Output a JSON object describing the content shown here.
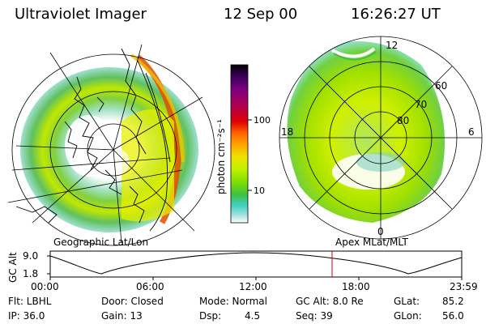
{
  "header": {
    "title": "Ultraviolet Imager",
    "date": "12 Sep 00",
    "time": "16:26:27 UT"
  },
  "left_map": {
    "label": "Geographic Lat/Lon"
  },
  "right_map": {
    "label": "Apex  MLat/MLT",
    "mlt_labels": {
      "top": "12",
      "left": "18",
      "right": "6",
      "bottom": "0"
    },
    "lat_labels": [
      "60",
      "70",
      "80"
    ]
  },
  "colorbar": {
    "unit": "photon cm⁻²s⁻¹",
    "ticks": [
      "100",
      "10"
    ],
    "colors": [
      "#000000",
      "#400060",
      "#800080",
      "#b00050",
      "#e00000",
      "#ff6000",
      "#ffa000",
      "#f0e000",
      "#c0f000",
      "#80e000",
      "#40c040",
      "#40d0c0",
      "#a0e0e0",
      "#ffffff"
    ]
  },
  "timeline": {
    "ylabel": "GC Alt",
    "yticks": [
      "9.0",
      "1.8"
    ],
    "xticks": [
      "00:00",
      "06:00",
      "12:00",
      "18:00",
      "23:59"
    ],
    "current_time_fraction": 0.685,
    "marker_color": "#d00000"
  },
  "info": {
    "row1": [
      "Flt: LBHL",
      "Door: Closed",
      "Mode: Normal",
      "GC Alt: 8.0 Re",
      "GLat:",
      "85.2"
    ],
    "row2": [
      "IP: 36.0",
      "Gain: 13",
      "Dsp:",
      "4.5",
      "Seq: 39",
      "GLon:",
      "56.0"
    ]
  }
}
